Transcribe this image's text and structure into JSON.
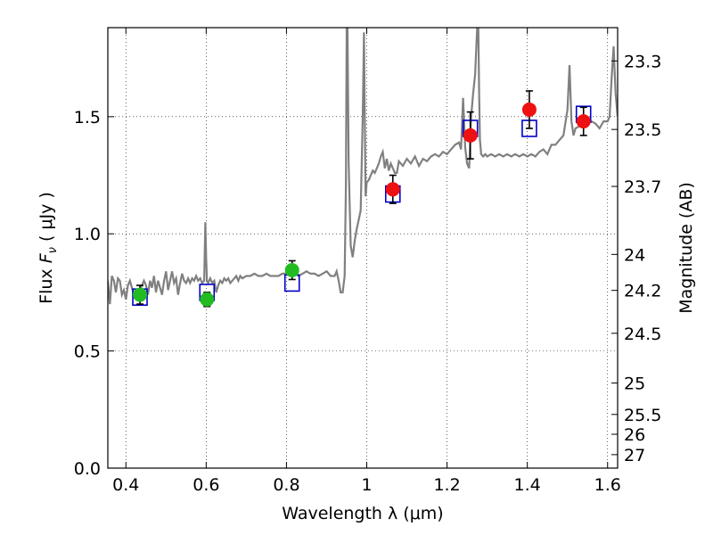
{
  "chart_data": {
    "type": "scatter",
    "xlabel": "Wavelength  λ (μm)",
    "ylabel": "Flux  F_ν  ( μJy )",
    "ylabel_parts": {
      "pre": "Flux  ",
      "sym": "F",
      "sub": "ν",
      "post": "  ( μJy )"
    },
    "y2label": "Magnitude (AB)",
    "xlim": [
      0.355,
      1.625
    ],
    "ylim": [
      0.0,
      1.88
    ],
    "grid": true,
    "x_ticks": [
      {
        "v": 0.4,
        "label": "0.4"
      },
      {
        "v": 0.6,
        "label": "0.6"
      },
      {
        "v": 0.8,
        "label": "0.8"
      },
      {
        "v": 1.0,
        "label": "1"
      },
      {
        "v": 1.2,
        "label": "1.2"
      },
      {
        "v": 1.4,
        "label": "1.4"
      },
      {
        "v": 1.6,
        "label": "1.6"
      }
    ],
    "y_ticks": [
      {
        "v": 0.0,
        "label": "0.0"
      },
      {
        "v": 0.5,
        "label": "0.5"
      },
      {
        "v": 1.0,
        "label": "1.0"
      },
      {
        "v": 1.5,
        "label": "1.5"
      }
    ],
    "mag_ticks": [
      {
        "v": 23.3,
        "label": "23.3"
      },
      {
        "v": 23.5,
        "label": "23.5"
      },
      {
        "v": 23.7,
        "label": "23.7"
      },
      {
        "v": 24.0,
        "label": "24"
      },
      {
        "v": 24.2,
        "label": "24.2"
      },
      {
        "v": 24.5,
        "label": "24.5"
      },
      {
        "v": 25.0,
        "label": "25"
      },
      {
        "v": 25.5,
        "label": "25.5"
      },
      {
        "v": 26.0,
        "label": "26"
      },
      {
        "v": 27.0,
        "label": "27"
      }
    ],
    "colors": {
      "model": "#808080",
      "model_photometry": "#0000cc",
      "optical": "#22bb22",
      "nir": "#ee1111",
      "errorbar": "#000000"
    },
    "model_spectrum": {
      "x": [
        0.355,
        0.36,
        0.365,
        0.37,
        0.375,
        0.38,
        0.385,
        0.39,
        0.395,
        0.4,
        0.405,
        0.41,
        0.415,
        0.42,
        0.425,
        0.43,
        0.435,
        0.44,
        0.445,
        0.45,
        0.455,
        0.46,
        0.465,
        0.47,
        0.475,
        0.48,
        0.485,
        0.49,
        0.495,
        0.5,
        0.505,
        0.51,
        0.515,
        0.52,
        0.525,
        0.53,
        0.535,
        0.54,
        0.545,
        0.55,
        0.555,
        0.56,
        0.565,
        0.57,
        0.575,
        0.58,
        0.585,
        0.59,
        0.595,
        0.598,
        0.6,
        0.602,
        0.605,
        0.61,
        0.615,
        0.62,
        0.625,
        0.63,
        0.635,
        0.64,
        0.645,
        0.65,
        0.655,
        0.66,
        0.665,
        0.67,
        0.675,
        0.68,
        0.685,
        0.69,
        0.7,
        0.71,
        0.72,
        0.73,
        0.74,
        0.75,
        0.76,
        0.77,
        0.78,
        0.79,
        0.8,
        0.81,
        0.82,
        0.83,
        0.84,
        0.85,
        0.86,
        0.87,
        0.88,
        0.89,
        0.9,
        0.91,
        0.92,
        0.925,
        0.93,
        0.935,
        0.94,
        0.945,
        0.948,
        0.95,
        0.952,
        0.955,
        0.96,
        0.965,
        0.97,
        0.975,
        0.98,
        0.985,
        0.99,
        0.993,
        0.995,
        0.997,
        1.0,
        1.005,
        1.01,
        1.015,
        1.02,
        1.025,
        1.03,
        1.035,
        1.04,
        1.045,
        1.05,
        1.055,
        1.06,
        1.065,
        1.07,
        1.075,
        1.08,
        1.09,
        1.1,
        1.11,
        1.12,
        1.13,
        1.14,
        1.15,
        1.16,
        1.17,
        1.18,
        1.19,
        1.2,
        1.21,
        1.22,
        1.23,
        1.235,
        1.24,
        1.245,
        1.25,
        1.255,
        1.26,
        1.265,
        1.27,
        1.275,
        1.278,
        1.28,
        1.282,
        1.285,
        1.29,
        1.295,
        1.3,
        1.31,
        1.32,
        1.33,
        1.34,
        1.35,
        1.36,
        1.37,
        1.38,
        1.39,
        1.4,
        1.41,
        1.42,
        1.43,
        1.44,
        1.45,
        1.46,
        1.47,
        1.48,
        1.49,
        1.5,
        1.505,
        1.51,
        1.515,
        1.52,
        1.53,
        1.54,
        1.55,
        1.56,
        1.57,
        1.58,
        1.59,
        1.6,
        1.605,
        1.61,
        1.615,
        1.62,
        1.625
      ],
      "y": [
        0.8,
        0.7,
        0.82,
        0.8,
        0.75,
        0.81,
        0.8,
        0.74,
        0.76,
        0.72,
        0.78,
        0.8,
        0.77,
        0.74,
        0.75,
        0.72,
        0.76,
        0.78,
        0.8,
        0.78,
        0.74,
        0.8,
        0.77,
        0.82,
        0.75,
        0.8,
        0.77,
        0.74,
        0.8,
        0.84,
        0.76,
        0.8,
        0.84,
        0.79,
        0.81,
        0.74,
        0.79,
        0.83,
        0.8,
        0.79,
        0.81,
        0.79,
        0.81,
        0.8,
        0.82,
        0.8,
        0.81,
        0.79,
        0.8,
        1.05,
        0.9,
        0.8,
        0.79,
        0.81,
        0.79,
        0.8,
        0.75,
        0.78,
        0.8,
        0.79,
        0.81,
        0.8,
        0.81,
        0.79,
        0.8,
        0.81,
        0.82,
        0.8,
        0.82,
        0.81,
        0.82,
        0.82,
        0.83,
        0.82,
        0.82,
        0.83,
        0.82,
        0.82,
        0.82,
        0.83,
        0.83,
        0.83,
        0.84,
        0.82,
        0.83,
        0.84,
        0.83,
        0.83,
        0.82,
        0.83,
        0.84,
        0.82,
        0.82,
        0.84,
        0.8,
        0.75,
        0.75,
        0.82,
        1.2,
        1.88,
        1.88,
        1.3,
        0.95,
        0.9,
        0.97,
        1.02,
        1.06,
        1.1,
        1.5,
        1.86,
        1.5,
        1.16,
        1.22,
        1.23,
        1.25,
        1.27,
        1.26,
        1.28,
        1.3,
        1.33,
        1.35,
        1.28,
        1.32,
        1.27,
        1.3,
        1.28,
        1.26,
        1.26,
        1.31,
        1.29,
        1.32,
        1.3,
        1.33,
        1.29,
        1.32,
        1.31,
        1.33,
        1.34,
        1.33,
        1.35,
        1.34,
        1.36,
        1.38,
        1.39,
        1.36,
        1.58,
        1.37,
        1.3,
        1.28,
        1.5,
        1.6,
        1.68,
        1.88,
        1.88,
        1.6,
        1.4,
        1.34,
        1.33,
        1.34,
        1.33,
        1.34,
        1.33,
        1.34,
        1.33,
        1.34,
        1.33,
        1.34,
        1.33,
        1.34,
        1.33,
        1.34,
        1.33,
        1.35,
        1.36,
        1.34,
        1.38,
        1.38,
        1.4,
        1.42,
        1.53,
        1.72,
        1.48,
        1.42,
        1.45,
        1.46,
        1.48,
        1.47,
        1.48,
        1.47,
        1.45,
        1.48,
        1.48,
        1.5,
        1.66,
        1.8,
        1.6,
        1.5
      ]
    },
    "model_photometry": {
      "x": [
        0.435,
        0.602,
        0.814,
        1.065,
        1.258,
        1.405,
        1.54
      ],
      "y": [
        0.73,
        0.75,
        0.79,
        1.17,
        1.45,
        1.45,
        1.51
      ]
    },
    "optical_points": {
      "x": [
        0.435,
        0.602,
        0.814
      ],
      "y": [
        0.74,
        0.72,
        0.845
      ],
      "err": [
        0.04,
        0.03,
        0.04
      ]
    },
    "nir_points": {
      "x": [
        1.065,
        1.258,
        1.405,
        1.54
      ],
      "y": [
        1.19,
        1.42,
        1.53,
        1.48
      ],
      "err": [
        0.06,
        0.1,
        0.08,
        0.06
      ]
    }
  }
}
